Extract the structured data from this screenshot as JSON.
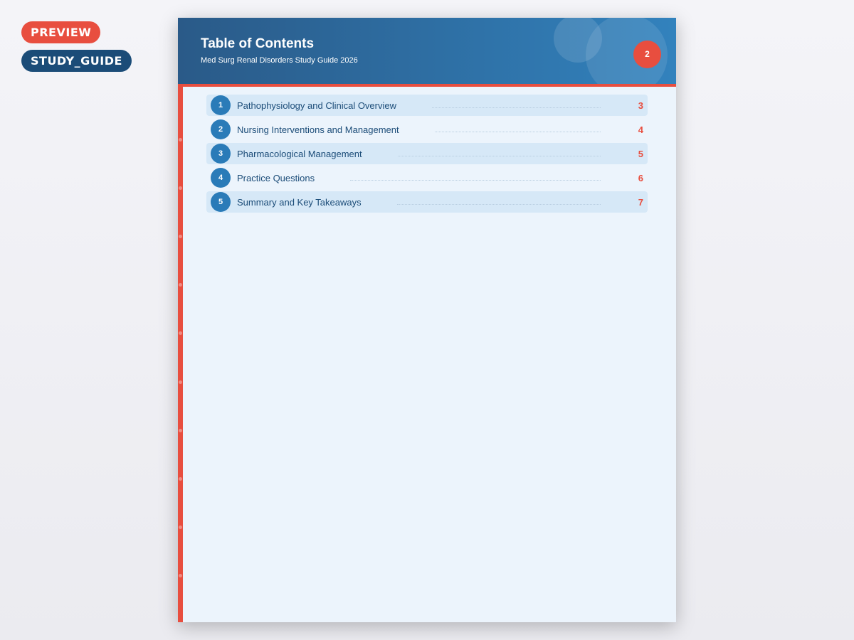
{
  "badges": {
    "preview": "PREVIEW",
    "type": "STUDY_GUIDE"
  },
  "header": {
    "title": "Table of Contents",
    "subtitle": "Med Surg Renal Disorders Study Guide 2026",
    "page_number": "2"
  },
  "toc": [
    {
      "num": "1",
      "label": "Pathophysiology and Clinical Overview",
      "page": "3"
    },
    {
      "num": "2",
      "label": "Nursing Interventions and Management",
      "page": "4"
    },
    {
      "num": "3",
      "label": "Pharmacological Management",
      "page": "5"
    },
    {
      "num": "4",
      "label": "Practice Questions",
      "page": "6"
    },
    {
      "num": "5",
      "label": "Summary and Key Takeaways",
      "page": "7"
    }
  ],
  "colors": {
    "accent": "#e84e3f",
    "primary": "#1b4c78",
    "header": "#3282bd"
  }
}
